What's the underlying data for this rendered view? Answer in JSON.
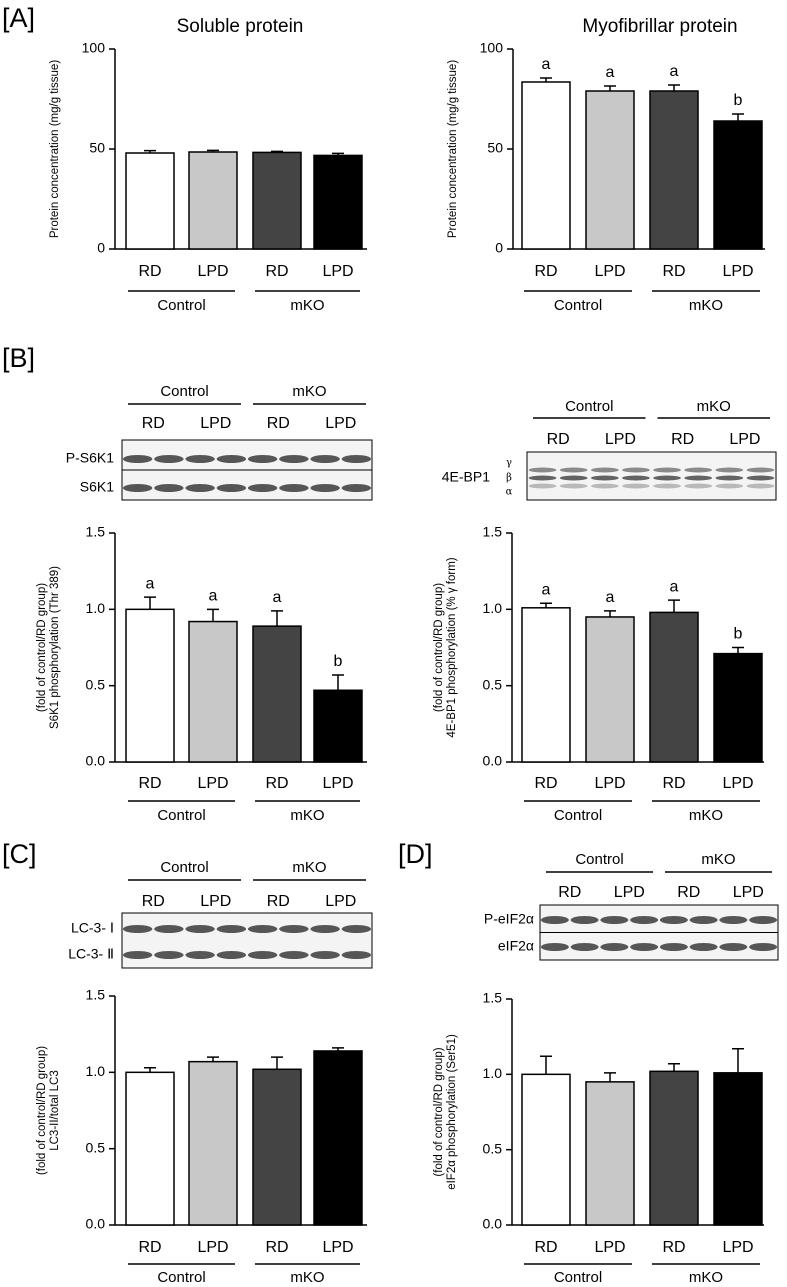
{
  "chart_data": [
    {
      "type": "bar",
      "panel": "[A]",
      "title": "Soluble protein",
      "y_label": [
        "Protein concentration (mg/g tissue)"
      ],
      "categories": [
        "RD",
        "LPD",
        "RD",
        "LPD"
      ],
      "groups": [
        "Control",
        "mKO"
      ],
      "values": [
        48,
        48.5,
        48.3,
        46.8
      ],
      "errors": [
        1.2,
        0.8,
        0.5,
        1.0
      ],
      "colors": [
        "#ffffff",
        "#c8c8c8",
        "#444444",
        "#000000"
      ],
      "ylim": [
        0,
        100
      ],
      "yticks": [
        0,
        50,
        100
      ]
    },
    {
      "type": "bar",
      "title": "Myofibrillar protein",
      "y_label": [
        "Protein concentration (mg/g tissue)"
      ],
      "categories": [
        "RD",
        "LPD",
        "RD",
        "LPD"
      ],
      "groups": [
        "Control",
        "mKO"
      ],
      "values": [
        83.5,
        79,
        79,
        64
      ],
      "errors": [
        2,
        2.5,
        3,
        3.5
      ],
      "letters": [
        "a",
        "a",
        "a",
        "b"
      ],
      "colors": [
        "#ffffff",
        "#c8c8c8",
        "#444444",
        "#000000"
      ],
      "ylim": [
        0,
        100
      ],
      "yticks": [
        0,
        50,
        100
      ]
    },
    {
      "type": "bar",
      "panel": "[B]",
      "y_label": [
        "S6K1 phosphorylation (Thr 389)",
        "(fold of control/RD group)"
      ],
      "categories": [
        "RD",
        "LPD",
        "RD",
        "LPD"
      ],
      "groups": [
        "Control",
        "mKO"
      ],
      "values": [
        1.0,
        0.92,
        0.89,
        0.47
      ],
      "errors": [
        0.08,
        0.08,
        0.1,
        0.1
      ],
      "letters": [
        "a",
        "a",
        "a",
        "b"
      ],
      "colors": [
        "#ffffff",
        "#c8c8c8",
        "#444444",
        "#000000"
      ],
      "ylim": [
        0,
        1.5
      ],
      "yticks": [
        {
          "value": 0,
          "label": "0.0"
        },
        {
          "value": 0.5,
          "label": "0.5"
        },
        {
          "value": 1,
          "label": "1.0"
        },
        {
          "value": 1.5,
          "label": "1.5"
        }
      ],
      "blot": {
        "groups": [
          "Control",
          "mKO"
        ],
        "lanes": [
          "RD",
          "LPD",
          "RD",
          "LPD"
        ],
        "rows": [
          "P-S6K1",
          "S6K1"
        ]
      }
    },
    {
      "type": "bar",
      "y_label": [
        "4E-BP1 phosphorylation (% γ form)",
        "(fold of control/RD group)"
      ],
      "categories": [
        "RD",
        "LPD",
        "RD",
        "LPD"
      ],
      "groups": [
        "Control",
        "mKO"
      ],
      "values": [
        1.01,
        0.95,
        0.98,
        0.71
      ],
      "errors": [
        0.03,
        0.04,
        0.08,
        0.04
      ],
      "letters": [
        "a",
        "a",
        "a",
        "b"
      ],
      "colors": [
        "#ffffff",
        "#c8c8c8",
        "#444444",
        "#000000"
      ],
      "ylim": [
        0,
        1.5
      ],
      "yticks": [
        {
          "value": 0,
          "label": "0.0"
        },
        {
          "value": 0.5,
          "label": "0.5"
        },
        {
          "value": 1,
          "label": "1.0"
        },
        {
          "value": 1.5,
          "label": "1.5"
        }
      ],
      "blot": {
        "groups": [
          "Control",
          "mKO"
        ],
        "lanes": [
          "RD",
          "LPD",
          "RD",
          "LPD"
        ],
        "rows": [
          "4E-BP1"
        ],
        "isoforms": [
          "γ",
          "β",
          "α"
        ]
      }
    },
    {
      "type": "bar",
      "panel": "[C]",
      "y_label": [
        "LC3-II/total LC3",
        "(fold of control/RD group)"
      ],
      "categories": [
        "RD",
        "LPD",
        "RD",
        "LPD"
      ],
      "groups": [
        "Control",
        "mKO"
      ],
      "values": [
        1.0,
        1.07,
        1.02,
        1.14
      ],
      "errors": [
        0.03,
        0.03,
        0.08,
        0.02
      ],
      "colors": [
        "#ffffff",
        "#c8c8c8",
        "#444444",
        "#000000"
      ],
      "ylim": [
        0,
        1.5
      ],
      "yticks": [
        {
          "value": 0,
          "label": "0.0"
        },
        {
          "value": 0.5,
          "label": "0.5"
        },
        {
          "value": 1,
          "label": "1.0"
        },
        {
          "value": 1.5,
          "label": "1.5"
        }
      ],
      "blot": {
        "groups": [
          "Control",
          "mKO"
        ],
        "lanes": [
          "RD",
          "LPD",
          "RD",
          "LPD"
        ],
        "rows": [
          "LC-3- Ⅰ",
          "LC-3- Ⅱ"
        ]
      }
    },
    {
      "type": "bar",
      "panel": "[D]",
      "y_label": [
        "eIF2α phosphorylation (Ser51)",
        "(fold of control/RD group)"
      ],
      "categories": [
        "RD",
        "LPD",
        "RD",
        "LPD"
      ],
      "groups": [
        "Control",
        "mKO"
      ],
      "values": [
        1.0,
        0.95,
        1.02,
        1.01
      ],
      "errors": [
        0.12,
        0.06,
        0.05,
        0.16
      ],
      "colors": [
        "#ffffff",
        "#c8c8c8",
        "#444444",
        "#000000"
      ],
      "ylim": [
        0,
        1.5
      ],
      "yticks": [
        {
          "value": 0,
          "label": "0.0"
        },
        {
          "value": 0.5,
          "label": "0.5"
        },
        {
          "value": 1,
          "label": "1.0"
        },
        {
          "value": 1.5,
          "label": "1.5"
        }
      ],
      "blot": {
        "groups": [
          "Control",
          "mKO"
        ],
        "lanes": [
          "RD",
          "LPD",
          "RD",
          "LPD"
        ],
        "rows": [
          "P-eIF2α",
          "eIF2α"
        ]
      }
    }
  ]
}
